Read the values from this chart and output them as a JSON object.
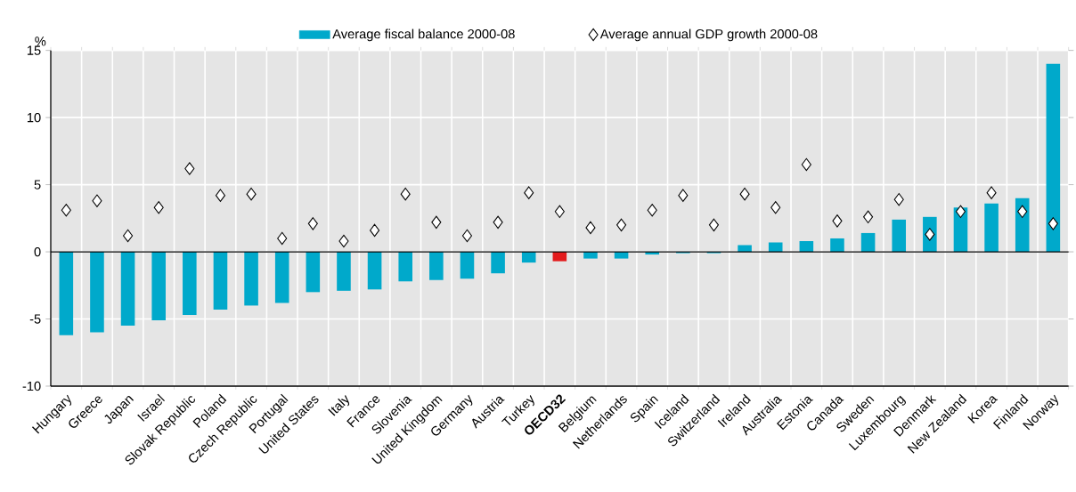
{
  "chart_data": {
    "type": "bar",
    "ylabel": "%",
    "legend": "top",
    "grid": true,
    "ylim": [
      -10,
      15
    ],
    "yticks": [
      -10,
      -5,
      0,
      5,
      10,
      15
    ],
    "categories": [
      "Hungary",
      "Greece",
      "Japan",
      "Israel",
      "Slovak Republic",
      "Poland",
      "Czech Republic",
      "Portugal",
      "United States",
      "Italy",
      "France",
      "Slovenia",
      "United Kingdom",
      "Germany",
      "Austria",
      "Turkey",
      "**OECD32**",
      "Belgium",
      "Netherlands",
      "Spain",
      "Iceland",
      "Switzerland",
      "Ireland",
      "Australia",
      "Estonia",
      "Canada",
      "Sweden",
      "Luxembourg",
      "Denmark",
      "New Zealand",
      "Korea",
      "Finland",
      "Norway"
    ],
    "series": [
      {
        "name": "Average fiscal balance 2000-08",
        "color": "#00a9cb",
        "colors": [
          "#00a9cb",
          "#00a9cb",
          "#00a9cb",
          "#00a9cb",
          "#00a9cb",
          "#00a9cb",
          "#00a9cb",
          "#00a9cb",
          "#00a9cb",
          "#00a9cb",
          "#00a9cb",
          "#00a9cb",
          "#00a9cb",
          "#00a9cb",
          "#00a9cb",
          "#00a9cb",
          "#e31a1c",
          "#00a9cb",
          "#00a9cb",
          "#00a9cb",
          "#00a9cb",
          "#00a9cb",
          "#00a9cb",
          "#00a9cb",
          "#00a9cb",
          "#00a9cb",
          "#00a9cb",
          "#00a9cb",
          "#00a9cb",
          "#00a9cb",
          "#00a9cb",
          "#00a9cb",
          "#00a9cb"
        ],
        "values": [
          -6.2,
          -6.0,
          -5.5,
          -5.1,
          -4.7,
          -4.3,
          -4.0,
          -3.8,
          -3.0,
          -2.9,
          -2.8,
          -2.2,
          -2.1,
          -2.0,
          -1.6,
          -0.8,
          -0.7,
          -0.5,
          -0.5,
          -0.2,
          -0.1,
          -0.1,
          0.5,
          0.7,
          0.8,
          1.0,
          1.4,
          2.4,
          2.6,
          3.3,
          3.6,
          4.0,
          14.0
        ]
      },
      {
        "name": "Average annual GDP growth 2000-08",
        "type": "scatter",
        "color": "#ffffff",
        "marker": "diamond",
        "values": [
          3.1,
          3.8,
          1.2,
          3.3,
          6.2,
          4.2,
          4.3,
          1.0,
          2.1,
          0.8,
          1.6,
          4.3,
          2.2,
          1.2,
          2.2,
          4.4,
          3.0,
          1.8,
          2.0,
          3.1,
          4.2,
          2.0,
          4.3,
          3.3,
          6.5,
          2.3,
          2.6,
          3.9,
          1.3,
          3.0,
          4.4,
          3.0,
          2.1
        ]
      }
    ]
  }
}
